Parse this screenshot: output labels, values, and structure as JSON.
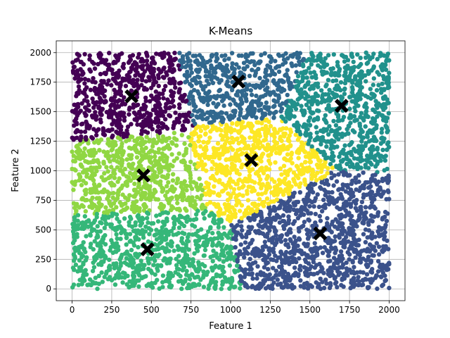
{
  "chart_data": {
    "type": "scatter",
    "title": "K-Means",
    "xlabel": "Feature 1",
    "ylabel": "Feature 2",
    "xlim": [
      -100,
      2100
    ],
    "ylim": [
      -100,
      2100
    ],
    "xticks": [
      0,
      250,
      500,
      750,
      1000,
      1250,
      1500,
      1750,
      2000
    ],
    "yticks": [
      0,
      250,
      500,
      750,
      1000,
      1250,
      1500,
      1750,
      2000
    ],
    "grid": true,
    "legend": false,
    "n_points_per_cluster_approx": 700,
    "clusters": [
      {
        "color": "#440154",
        "center": [
          375,
          1630
        ]
      },
      {
        "color": "#31688e",
        "center": [
          1050,
          1755
        ]
      },
      {
        "color": "#21918c",
        "center": [
          1700,
          1550
        ]
      },
      {
        "color": "#3b528b",
        "center": [
          1565,
          470
        ]
      },
      {
        "color": "#35b779",
        "center": [
          475,
          335
        ]
      },
      {
        "color": "#90d743",
        "center": [
          450,
          960
        ]
      },
      {
        "color": "#fde725",
        "center": [
          1130,
          1090
        ]
      }
    ],
    "centroid_marker": {
      "shape": "X",
      "color": "#000000"
    }
  }
}
